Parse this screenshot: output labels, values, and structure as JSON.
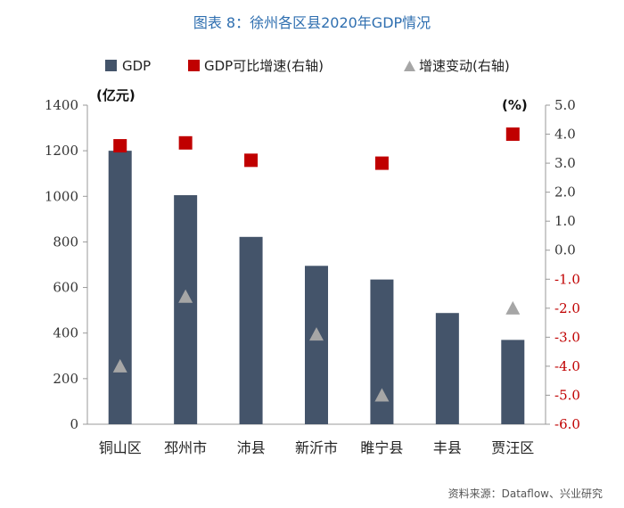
{
  "chart_data": {
    "type": "bar",
    "title": "图表 8：徐州各区县2020年GDP情况",
    "categories": [
      "铜山区",
      "邳州市",
      "沛县",
      "新沂市",
      "睢宁县",
      "丰县",
      "贾汪区"
    ],
    "series": [
      {
        "name": "GDP",
        "type": "bar",
        "axis": "left",
        "color": "#44546a",
        "values": [
          1200,
          1005,
          822,
          695,
          635,
          488,
          370
        ]
      },
      {
        "name": "GDP可比增速(右轴)",
        "type": "scatter",
        "marker": "square",
        "axis": "right",
        "color": "#c00000",
        "values": [
          3.6,
          3.7,
          3.1,
          null,
          3.0,
          null,
          4.0
        ]
      },
      {
        "name": "增速变动(右轴)",
        "type": "scatter",
        "marker": "triangle",
        "axis": "right",
        "color": "#a6a6a6",
        "values": [
          -4.0,
          -1.6,
          null,
          -2.9,
          -5.0,
          null,
          -2.0
        ]
      }
    ],
    "y_left": {
      "label": "(亿元)",
      "ylim": [
        0,
        1400
      ],
      "ticks": [
        0,
        200,
        400,
        600,
        800,
        1000,
        1200,
        1400
      ]
    },
    "y_right": {
      "label": "(%)",
      "ylim": [
        -6.0,
        5.0
      ],
      "ticks": [
        "5.0",
        "4.0",
        "3.0",
        "2.0",
        "1.0",
        "0.0",
        "-1.0",
        "-2.0",
        "-3.0",
        "-4.0",
        "-5.0",
        "-6.0"
      ]
    },
    "legend_position": "top",
    "grid": false
  },
  "source": "资料来源：Dataflow、兴业研究"
}
